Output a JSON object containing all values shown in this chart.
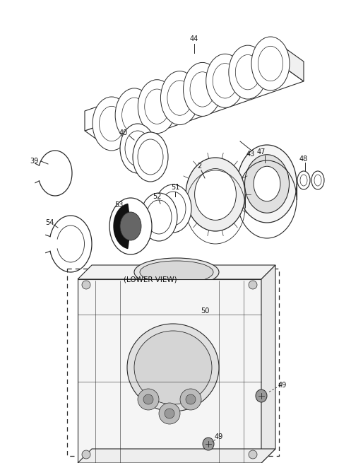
{
  "bg_color": "#ffffff",
  "line_color": "#2a2a2a",
  "fig_width": 4.8,
  "fig_height": 6.55,
  "dpi": 100
}
